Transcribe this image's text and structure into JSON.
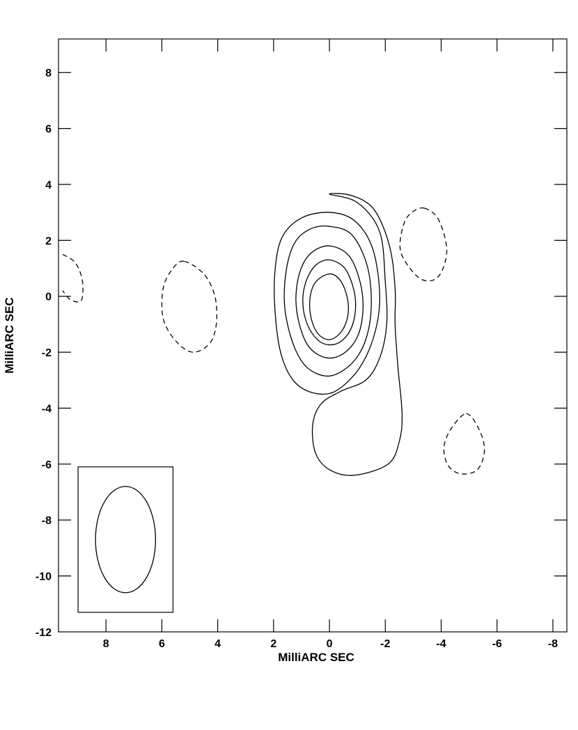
{
  "chart_data": {
    "type": "contour",
    "title": "",
    "xlabel": "MilliARC SEC",
    "ylabel": "MilliARC SEC",
    "xlim": [
      9.7,
      -8.5
    ],
    "ylim": [
      -12,
      9.2
    ],
    "x_axis_reversed": true,
    "x_ticks": [
      8,
      6,
      4,
      2,
      0,
      -2,
      -4,
      -6,
      -8
    ],
    "x_tick_labels": [
      "8",
      "6",
      "4",
      "2",
      "0",
      "-2",
      "-4",
      "-6",
      "-8"
    ],
    "y_ticks": [
      8,
      6,
      4,
      2,
      0,
      -2,
      -4,
      -6,
      -8,
      -10,
      -12
    ],
    "y_tick_labels": [
      "8",
      "6",
      "4",
      "2",
      "0",
      "-2",
      "-4",
      "-6",
      "-8",
      "-10",
      "-12"
    ],
    "grid": false,
    "line_color": "#000000",
    "positive_contours": [
      {
        "level_index": 1,
        "style": "solid",
        "points": [
          [
            0.0,
            3.65
          ],
          [
            -1.0,
            3.35
          ],
          [
            -1.8,
            2.3
          ],
          [
            -2.0,
            0.5
          ],
          [
            -2.05,
            -1.0
          ],
          [
            -1.8,
            -2.2
          ],
          [
            -1.3,
            -3.0
          ],
          [
            -0.4,
            -3.4
          ],
          [
            0.3,
            -3.85
          ],
          [
            0.6,
            -4.6
          ],
          [
            0.5,
            -5.6
          ],
          [
            0.0,
            -6.2
          ],
          [
            -0.9,
            -6.4
          ],
          [
            -2.1,
            -6.0
          ],
          [
            -2.5,
            -5.2
          ],
          [
            -2.6,
            -4.2
          ],
          [
            -2.45,
            -2.5
          ],
          [
            -2.35,
            -1.0
          ],
          [
            -2.35,
            0.3
          ],
          [
            -2.15,
            1.8
          ],
          [
            -1.6,
            3.1
          ],
          [
            -0.8,
            3.6
          ]
        ]
      },
      {
        "level_index": 2,
        "style": "solid",
        "points": [
          [
            0.0,
            3.0
          ],
          [
            -0.9,
            2.7
          ],
          [
            -1.55,
            1.7
          ],
          [
            -1.8,
            0.0
          ],
          [
            -1.6,
            -1.4
          ],
          [
            -1.05,
            -2.6
          ],
          [
            -0.2,
            -3.4
          ],
          [
            0.6,
            -3.45
          ],
          [
            1.3,
            -3.0
          ],
          [
            1.75,
            -2.0
          ],
          [
            1.95,
            -0.5
          ],
          [
            1.95,
            0.9
          ],
          [
            1.7,
            2.1
          ],
          [
            1.0,
            2.8
          ]
        ]
      },
      {
        "level_index": 3,
        "style": "solid",
        "points": [
          [
            0.0,
            2.5
          ],
          [
            -0.8,
            2.2
          ],
          [
            -1.35,
            1.1
          ],
          [
            -1.5,
            -0.3
          ],
          [
            -1.3,
            -1.55
          ],
          [
            -0.8,
            -2.4
          ],
          [
            0.0,
            -2.85
          ],
          [
            0.8,
            -2.55
          ],
          [
            1.3,
            -1.7
          ],
          [
            1.6,
            -0.4
          ],
          [
            1.55,
            0.9
          ],
          [
            1.25,
            1.9
          ],
          [
            0.7,
            2.4
          ]
        ]
      },
      {
        "level_index": 4,
        "style": "solid",
        "points": [
          [
            0.0,
            1.8
          ],
          [
            -0.7,
            1.45
          ],
          [
            -1.1,
            0.5
          ],
          [
            -1.2,
            -0.5
          ],
          [
            -1.0,
            -1.45
          ],
          [
            -0.5,
            -2.05
          ],
          [
            0.1,
            -2.2
          ],
          [
            0.7,
            -1.85
          ],
          [
            1.05,
            -1.1
          ],
          [
            1.2,
            -0.1
          ],
          [
            1.05,
            0.9
          ],
          [
            0.65,
            1.55
          ]
        ]
      },
      {
        "level_index": 5,
        "style": "solid",
        "points": [
          [
            0.0,
            1.3
          ],
          [
            -0.55,
            1.0
          ],
          [
            -0.88,
            0.2
          ],
          [
            -0.92,
            -0.6
          ],
          [
            -0.7,
            -1.3
          ],
          [
            -0.25,
            -1.7
          ],
          [
            0.3,
            -1.65
          ],
          [
            0.75,
            -1.1
          ],
          [
            0.95,
            -0.3
          ],
          [
            0.85,
            0.5
          ],
          [
            0.5,
            1.1
          ]
        ]
      },
      {
        "level_index": 6,
        "style": "solid",
        "points": [
          [
            0.0,
            0.8
          ],
          [
            -0.4,
            0.55
          ],
          [
            -0.65,
            -0.1
          ],
          [
            -0.65,
            -0.75
          ],
          [
            -0.4,
            -1.3
          ],
          [
            0.0,
            -1.55
          ],
          [
            0.4,
            -1.35
          ],
          [
            0.65,
            -0.8
          ],
          [
            0.7,
            -0.1
          ],
          [
            0.5,
            0.5
          ]
        ]
      }
    ],
    "negative_contours": [
      {
        "style": "dashed",
        "points": [
          [
            5.2,
            1.25
          ],
          [
            4.5,
            0.8
          ],
          [
            4.1,
            0.0
          ],
          [
            4.05,
            -1.0
          ],
          [
            4.3,
            -1.7
          ],
          [
            4.9,
            -2.0
          ],
          [
            5.5,
            -1.6
          ],
          [
            5.95,
            -0.8
          ],
          [
            5.95,
            0.3
          ],
          [
            5.6,
            1.0
          ]
        ]
      },
      {
        "style": "dashed",
        "points": [
          [
            -3.4,
            3.15
          ],
          [
            -3.9,
            2.75
          ],
          [
            -4.2,
            1.7
          ],
          [
            -4.0,
            0.85
          ],
          [
            -3.6,
            0.55
          ],
          [
            -3.1,
            0.75
          ],
          [
            -2.55,
            1.6
          ],
          [
            -2.65,
            2.55
          ],
          [
            -2.95,
            3.0
          ]
        ]
      },
      {
        "style": "dashed",
        "points": [
          [
            -4.9,
            -4.2
          ],
          [
            -5.35,
            -4.75
          ],
          [
            -5.55,
            -5.5
          ],
          [
            -5.3,
            -6.2
          ],
          [
            -4.7,
            -6.35
          ],
          [
            -4.25,
            -6.05
          ],
          [
            -4.1,
            -5.4
          ],
          [
            -4.35,
            -4.75
          ]
        ]
      },
      {
        "style": "dashed_partial",
        "points": [
          [
            9.55,
            1.5
          ],
          [
            9.1,
            1.2
          ],
          [
            8.85,
            0.6
          ],
          [
            8.85,
            -0.05
          ],
          [
            9.0,
            -0.2
          ],
          [
            9.3,
            -0.1
          ],
          [
            9.55,
            0.2
          ]
        ]
      }
    ],
    "beam": {
      "center": [
        7.3,
        -8.7
      ],
      "major_axis": 3.8,
      "minor_axis": 2.15,
      "position_angle_deg": 0,
      "box": {
        "x": [
          9.0,
          5.6
        ],
        "y": [
          -11.3,
          -6.1
        ]
      }
    }
  }
}
